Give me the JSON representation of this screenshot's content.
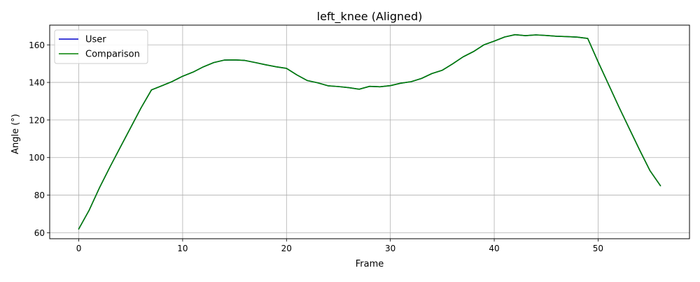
{
  "chart_data": {
    "type": "line",
    "title": "left_knee (Aligned)",
    "xlabel": "Frame",
    "ylabel": "Angle (°)",
    "xlim": [
      -2.8,
      58.8
    ],
    "ylim": [
      56.8,
      170.5
    ],
    "xticks": [
      0,
      10,
      20,
      30,
      40,
      50
    ],
    "yticks": [
      60,
      80,
      100,
      120,
      140,
      160
    ],
    "grid": true,
    "legend_position": "upper left",
    "series": [
      {
        "name": "User",
        "color": "#0000cc",
        "x": [
          0,
          1,
          2,
          3,
          4,
          5,
          6,
          7,
          8,
          9,
          10,
          11,
          12,
          13,
          14,
          15,
          16,
          17,
          18,
          19,
          20,
          21,
          22,
          23,
          24,
          25,
          26,
          27,
          28,
          29,
          30,
          31,
          32,
          33,
          34,
          35,
          36,
          37,
          38,
          39,
          40,
          41,
          42,
          43,
          44,
          45,
          46,
          47,
          48,
          49,
          50,
          51,
          52,
          53,
          54,
          55,
          56
        ],
        "y": [
          62,
          72,
          84,
          95,
          105.5,
          116,
          126.5,
          136,
          138.2,
          140.5,
          143.3,
          145.5,
          148.3,
          150.6,
          151.9,
          152,
          151.7,
          150.6,
          149.4,
          148.3,
          147.5,
          144,
          141,
          139.8,
          138.2,
          137.8,
          137.2,
          136.4,
          137.9,
          137.7,
          138.3,
          139.6,
          140.4,
          142.1,
          144.7,
          146.5,
          149.9,
          153.6,
          156.4,
          160,
          162,
          164.2,
          165.4,
          164.9,
          165.3,
          165,
          164.6,
          164.4,
          164.1,
          163.4,
          151,
          139,
          127,
          115.5,
          104,
          93,
          85
        ]
      },
      {
        "name": "Comparison",
        "color": "#008000",
        "x": [
          0,
          1,
          2,
          3,
          4,
          5,
          6,
          7,
          8,
          9,
          10,
          11,
          12,
          13,
          14,
          15,
          16,
          17,
          18,
          19,
          20,
          21,
          22,
          23,
          24,
          25,
          26,
          27,
          28,
          29,
          30,
          31,
          32,
          33,
          34,
          35,
          36,
          37,
          38,
          39,
          40,
          41,
          42,
          43,
          44,
          45,
          46,
          47,
          48,
          49,
          50,
          51,
          52,
          53,
          54,
          55,
          56
        ],
        "y": [
          62,
          72,
          84,
          95,
          105.5,
          116,
          126.5,
          136,
          138.2,
          140.5,
          143.3,
          145.5,
          148.3,
          150.6,
          151.9,
          152,
          151.7,
          150.6,
          149.4,
          148.3,
          147.5,
          144,
          141,
          139.8,
          138.2,
          137.8,
          137.2,
          136.4,
          137.9,
          137.7,
          138.3,
          139.6,
          140.4,
          142.1,
          144.7,
          146.5,
          149.9,
          153.6,
          156.4,
          160,
          162,
          164.2,
          165.4,
          164.9,
          165.3,
          165,
          164.6,
          164.4,
          164.1,
          163.4,
          151,
          139,
          127,
          115.5,
          104,
          93,
          85
        ]
      }
    ]
  }
}
